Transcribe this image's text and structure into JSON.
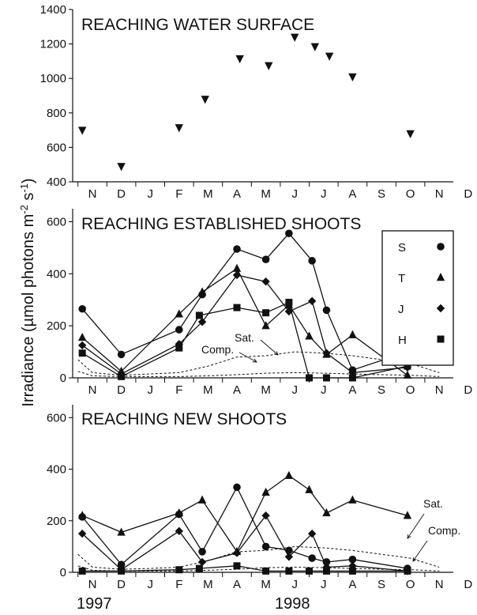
{
  "figure": {
    "y_axis_label": "Irradiance (µmol photons m-2 s-1)",
    "x_month_labels": [
      "N",
      "D",
      "J",
      "F",
      "M",
      "A",
      "M",
      "J",
      "J",
      "A",
      "S",
      "O",
      "N",
      "D"
    ],
    "year_labels": [
      "1997",
      "1998"
    ]
  },
  "legend": {
    "entries": [
      {
        "label": "S",
        "marker": "circle"
      },
      {
        "label": "T",
        "marker": "triangle"
      },
      {
        "label": "J",
        "marker": "diamond"
      },
      {
        "label": "H",
        "marker": "square"
      }
    ]
  },
  "annotations": {
    "sat": "Sat.",
    "comp": "Comp."
  },
  "chart_data": [
    {
      "type": "scatter",
      "title": "REACHING WATER SURFACE",
      "x_unit": "months from November 1997",
      "ylim": [
        400,
        1400
      ],
      "yticks": [
        400,
        600,
        800,
        1000,
        1200,
        1400
      ],
      "series": [
        {
          "marker": "triangle-down",
          "x": [
            -0.35,
            1.0,
            3.0,
            3.9,
            5.1,
            6.1,
            7.0,
            7.7,
            8.2,
            9.0,
            11.0
          ],
          "y": [
            700,
            490,
            715,
            880,
            1115,
            1075,
            1240,
            1185,
            1130,
            1010,
            680
          ]
        }
      ]
    },
    {
      "type": "line",
      "title": "REACHING ESTABLISHED SHOOTS",
      "x_unit": "months from November 1997",
      "ylim": [
        0,
        650
      ],
      "yticks": [
        0,
        200,
        400,
        600
      ],
      "series": [
        {
          "name": "S",
          "marker": "circle",
          "x": [
            -0.35,
            1.0,
            3.0,
            3.8,
            5.0,
            6.0,
            6.8,
            7.6,
            8.1,
            9.0,
            10.9
          ],
          "y": [
            265,
            90,
            185,
            320,
            495,
            455,
            555,
            450,
            260,
            30,
            100
          ]
        },
        {
          "name": "T",
          "marker": "triangle",
          "x": [
            -0.35,
            1.0,
            3.0,
            3.8,
            5.0,
            6.0,
            6.8,
            7.5,
            8.1,
            9.0,
            10.9
          ],
          "y": [
            155,
            25,
            245,
            330,
            420,
            200,
            280,
            160,
            90,
            165,
            10
          ]
        },
        {
          "name": "J",
          "marker": "diamond",
          "x": [
            -0.35,
            1.0,
            3.0,
            3.8,
            5.0,
            6.0,
            6.8,
            7.6,
            8.1,
            9.0,
            10.9
          ],
          "y": [
            125,
            15,
            130,
            215,
            395,
            370,
            255,
            295,
            95,
            20,
            40
          ]
        },
        {
          "name": "H",
          "marker": "square",
          "x": [
            -0.35,
            1.0,
            3.0,
            3.7,
            5.0,
            6.0,
            6.8,
            7.5,
            8.1,
            9.0,
            10.9
          ],
          "y": [
            95,
            5,
            115,
            240,
            270,
            250,
            290,
            0,
            0,
            0,
            45
          ]
        },
        {
          "name": "Sat.",
          "style": "dashed",
          "x": [
            -0.5,
            0.0,
            1.0,
            2.0,
            3.0,
            4.0,
            5.0,
            6.0,
            7.0,
            8.0,
            9.0,
            10.0,
            11.0,
            12.0
          ],
          "y": [
            70,
            20,
            10,
            15,
            20,
            45,
            80,
            85,
            100,
            95,
            85,
            70,
            55,
            20
          ]
        },
        {
          "name": "Comp.",
          "style": "dashed",
          "x": [
            -0.5,
            0.0,
            1.0,
            2.0,
            3.0,
            4.0,
            5.0,
            6.0,
            7.0,
            8.0,
            9.0,
            10.0,
            11.0,
            12.0
          ],
          "y": [
            25,
            8,
            5,
            5,
            5,
            8,
            12,
            18,
            20,
            18,
            15,
            12,
            10,
            5
          ]
        }
      ]
    },
    {
      "type": "line",
      "title": "REACHING NEW SHOOTS",
      "x_unit": "months from November 1997",
      "ylim": [
        0,
        650
      ],
      "yticks": [
        0,
        200,
        400,
        600
      ],
      "series": [
        {
          "name": "S",
          "marker": "circle",
          "x": [
            -0.35,
            1.0,
            3.0,
            3.8,
            5.0,
            6.0,
            6.8,
            7.6,
            8.1,
            9.0,
            10.9
          ],
          "y": [
            215,
            30,
            225,
            80,
            330,
            100,
            85,
            55,
            40,
            50,
            15
          ]
        },
        {
          "name": "T",
          "marker": "triangle",
          "x": [
            -0.35,
            1.0,
            3.0,
            3.8,
            5.0,
            6.0,
            6.8,
            7.5,
            8.1,
            9.0,
            10.9
          ],
          "y": [
            220,
            155,
            230,
            280,
            80,
            310,
            375,
            320,
            230,
            280,
            220
          ]
        },
        {
          "name": "J",
          "marker": "diamond",
          "x": [
            -0.35,
            1.0,
            3.0,
            3.8,
            5.0,
            6.0,
            6.8,
            7.6,
            8.1,
            9.0,
            10.9
          ],
          "y": [
            150,
            10,
            160,
            40,
            75,
            220,
            60,
            150,
            20,
            25,
            5
          ]
        },
        {
          "name": "H",
          "marker": "square",
          "x": [
            -0.35,
            1.0,
            3.0,
            3.7,
            5.0,
            6.0,
            6.8,
            7.5,
            8.1,
            9.0,
            10.9
          ],
          "y": [
            5,
            5,
            10,
            15,
            25,
            5,
            5,
            5,
            5,
            5,
            5
          ]
        },
        {
          "name": "Sat.",
          "style": "dashed",
          "x": [
            -0.5,
            0.0,
            1.0,
            2.0,
            3.0,
            4.0,
            5.0,
            6.0,
            7.0,
            8.0,
            9.0,
            10.0,
            11.0,
            12.0
          ],
          "y": [
            70,
            20,
            12,
            15,
            20,
            45,
            80,
            85,
            100,
            95,
            85,
            70,
            55,
            20
          ]
        },
        {
          "name": "Comp.",
          "style": "dashed",
          "x": [
            -0.5,
            0.0,
            1.0,
            2.0,
            3.0,
            4.0,
            5.0,
            6.0,
            7.0,
            8.0,
            9.0,
            10.0,
            11.0,
            12.0
          ],
          "y": [
            25,
            8,
            5,
            5,
            5,
            8,
            12,
            18,
            20,
            18,
            15,
            12,
            10,
            5
          ]
        }
      ]
    }
  ]
}
